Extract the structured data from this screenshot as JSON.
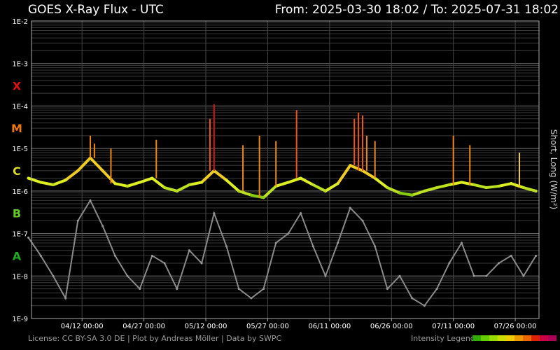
{
  "header": {
    "title": "GOES X-Ray Flux - UTC",
    "range": "From: 2025-03-30 18:02  /  To: 2025-07-31 18:02"
  },
  "footer": {
    "credits": "License: CC BY-SA 3.0 DE | Plot by Andreas Möller | Data by SWPC",
    "legend_label": "Intensity Legend",
    "legend_colors": [
      "#33aa00",
      "#66cc00",
      "#99dd00",
      "#ccdd00",
      "#eecc00",
      "#ee9900",
      "#ee6600",
      "#dd2200",
      "#cc0044",
      "#aa0055"
    ]
  },
  "chart_data": {
    "type": "line",
    "title": "GOES X-Ray Flux - UTC",
    "ylabel": "Short, Long (W/m²)",
    "yscale": "log",
    "ylim": [
      1e-09,
      0.01
    ],
    "xlim": [
      "2025-03-30 18:02",
      "2025-07-31 18:02"
    ],
    "y_ticks": [
      "1E-2",
      "1E-3",
      "1E-4",
      "1E-5",
      "1E-6",
      "1E-7",
      "1E-8",
      "1E-9"
    ],
    "x_ticks": [
      {
        "date": "2025-04-12 00:00",
        "label": "04/12 00:00"
      },
      {
        "date": "2025-04-27 00:00",
        "label": "04/27 00:00"
      },
      {
        "date": "2025-05-12 00:00",
        "label": "05/12 00:00"
      },
      {
        "date": "2025-05-27 00:00",
        "label": "05/27 00:00"
      },
      {
        "date": "2025-06-11 00:00",
        "label": "06/11 00:00"
      },
      {
        "date": "2025-06-26 00:00",
        "label": "06/26 00:00"
      },
      {
        "date": "2025-07-11 00:00",
        "label": "07/11 00:00"
      },
      {
        "date": "2025-07-26 00:00",
        "label": "07/26 00:00"
      }
    ],
    "flare_classes": [
      {
        "label": "X",
        "at": 0.0003,
        "color": "#dd1111"
      },
      {
        "label": "M",
        "at": 3e-05,
        "color": "#ee7711"
      },
      {
        "label": "C",
        "at": 3e-06,
        "color": "#dddd22"
      },
      {
        "label": "B",
        "at": 3e-07,
        "color": "#66cc22"
      },
      {
        "label": "A",
        "at": 3e-08,
        "color": "#22aa22"
      }
    ],
    "series": [
      {
        "name": "Long",
        "x": [
          "2025-03-30",
          "2025-04-02",
          "2025-04-05",
          "2025-04-08",
          "2025-04-11",
          "2025-04-14",
          "2025-04-17",
          "2025-04-20",
          "2025-04-23",
          "2025-04-26",
          "2025-04-29",
          "2025-05-02",
          "2025-05-05",
          "2025-05-08",
          "2025-05-11",
          "2025-05-14",
          "2025-05-17",
          "2025-05-20",
          "2025-05-23",
          "2025-05-26",
          "2025-05-29",
          "2025-06-01",
          "2025-06-04",
          "2025-06-07",
          "2025-06-10",
          "2025-06-13",
          "2025-06-16",
          "2025-06-19",
          "2025-06-22",
          "2025-06-25",
          "2025-06-28",
          "2025-07-01",
          "2025-07-04",
          "2025-07-07",
          "2025-07-10",
          "2025-07-13",
          "2025-07-16",
          "2025-07-19",
          "2025-07-22",
          "2025-07-25",
          "2025-07-28",
          "2025-07-31"
        ],
        "values": [
          2e-06,
          1.6e-06,
          1.4e-06,
          1.8e-06,
          3e-06,
          6e-06,
          3e-06,
          1.5e-06,
          1.3e-06,
          1.6e-06,
          2e-06,
          1.2e-06,
          1e-06,
          1.4e-06,
          1.6e-06,
          3e-06,
          1.8e-06,
          1e-06,
          8e-07,
          7e-07,
          1.3e-06,
          1.6e-06,
          2e-06,
          1.4e-06,
          1e-06,
          1.5e-06,
          4e-06,
          3e-06,
          2e-06,
          1.2e-06,
          9e-07,
          8e-07,
          1e-06,
          1.2e-06,
          1.4e-06,
          1.6e-06,
          1.4e-06,
          1.2e-06,
          1.3e-06,
          1.5e-06,
          1.2e-06,
          1e-06
        ]
      },
      {
        "name": "Short",
        "x": [
          "2025-03-30",
          "2025-04-02",
          "2025-04-05",
          "2025-04-08",
          "2025-04-11",
          "2025-04-14",
          "2025-04-17",
          "2025-04-20",
          "2025-04-23",
          "2025-04-26",
          "2025-04-29",
          "2025-05-02",
          "2025-05-05",
          "2025-05-08",
          "2025-05-11",
          "2025-05-14",
          "2025-05-17",
          "2025-05-20",
          "2025-05-23",
          "2025-05-26",
          "2025-05-29",
          "2025-06-01",
          "2025-06-04",
          "2025-06-07",
          "2025-06-10",
          "2025-06-13",
          "2025-06-16",
          "2025-06-19",
          "2025-06-22",
          "2025-06-25",
          "2025-06-28",
          "2025-07-01",
          "2025-07-04",
          "2025-07-07",
          "2025-07-10",
          "2025-07-13",
          "2025-07-16",
          "2025-07-19",
          "2025-07-22",
          "2025-07-25",
          "2025-07-28",
          "2025-07-31"
        ],
        "values": [
          8e-08,
          3e-08,
          1e-08,
          3e-09,
          2e-07,
          6e-07,
          1.5e-07,
          3e-08,
          1e-08,
          5e-09,
          3e-08,
          2e-08,
          5e-09,
          4e-08,
          2e-08,
          3e-07,
          5e-08,
          5e-09,
          3e-09,
          5e-09,
          6e-08,
          1e-07,
          3e-07,
          5e-08,
          1e-08,
          6e-08,
          4e-07,
          2e-07,
          5e-08,
          5e-09,
          1e-08,
          3e-09,
          2e-09,
          5e-09,
          2e-08,
          6e-08,
          1e-08,
          1e-08,
          2e-08,
          3e-08,
          1e-08,
          3e-08
        ]
      }
    ],
    "peaks": [
      {
        "x": "2025-04-14",
        "value": 2e-05
      },
      {
        "x": "2025-04-15",
        "value": 1.3e-05
      },
      {
        "x": "2025-04-19",
        "value": 1e-05
      },
      {
        "x": "2025-04-30",
        "value": 1.6e-05
      },
      {
        "x": "2025-05-13",
        "value": 5e-05
      },
      {
        "x": "2025-05-14",
        "value": 0.00011
      },
      {
        "x": "2025-05-21",
        "value": 1.2e-05
      },
      {
        "x": "2025-05-25",
        "value": 2e-05
      },
      {
        "x": "2025-05-29",
        "value": 1.5e-05
      },
      {
        "x": "2025-06-03",
        "value": 8e-05
      },
      {
        "x": "2025-06-17",
        "value": 5e-05
      },
      {
        "x": "2025-06-18",
        "value": 7e-05
      },
      {
        "x": "2025-06-19",
        "value": 6e-05
      },
      {
        "x": "2025-06-20",
        "value": 2e-05
      },
      {
        "x": "2025-06-22",
        "value": 1.5e-05
      },
      {
        "x": "2025-07-11",
        "value": 2e-05
      },
      {
        "x": "2025-07-15",
        "value": 1.2e-05
      },
      {
        "x": "2025-07-27",
        "value": 8e-06
      }
    ],
    "grid": true
  }
}
